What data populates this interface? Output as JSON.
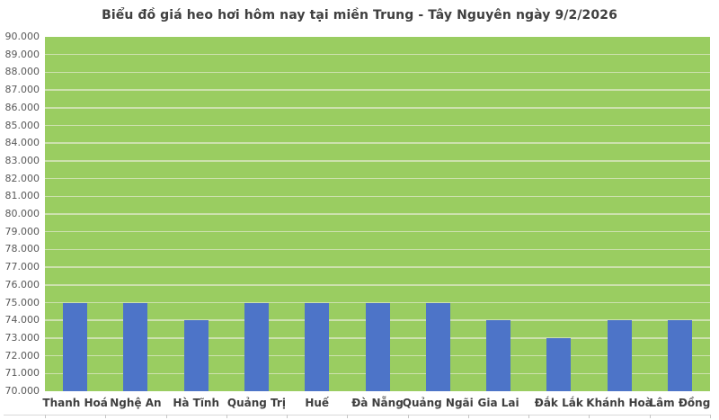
{
  "chart_data": {
    "type": "bar",
    "title": "Biểu đồ giá heo hơi hôm nay tại miền Trung - Tây Nguyên ngày 9/2/2026",
    "categories": [
      "Thanh Hoá",
      "Nghệ An",
      "Hà Tĩnh",
      "Quảng Trị",
      "Huế",
      "Đà Nẵng",
      "Quảng Ngãi",
      "Gia Lai",
      "Đắk Lắk",
      "Khánh Hoà",
      "Lâm Đồng"
    ],
    "values": [
      75000,
      75000,
      74000,
      75000,
      75000,
      75000,
      75000,
      74000,
      73000,
      74000,
      74000
    ],
    "xlabel": "",
    "ylabel": "",
    "ylim": [
      70000,
      90000
    ],
    "ytick_step": 1000,
    "ytick_labels": [
      "70.000",
      "71.000",
      "72.000",
      "73.000",
      "74.000",
      "75.000",
      "76.000",
      "77.000",
      "78.000",
      "79.000",
      "80.000",
      "81.000",
      "82.000",
      "83.000",
      "84.000",
      "85.000",
      "86.000",
      "87.000",
      "88.000",
      "89.000",
      "90.000"
    ],
    "grid": true,
    "legend_position": "none",
    "colors": {
      "bar": "#4D74C8",
      "plot_background": "#9ACD61",
      "gridline": "#CDE1AE",
      "title_text": "#3F3F3F",
      "ytick_text": "#595959",
      "xtick_text": "#3F3F3F",
      "axis_line": "#D9D9D9",
      "tick_mark": "#C6C6C6"
    }
  }
}
